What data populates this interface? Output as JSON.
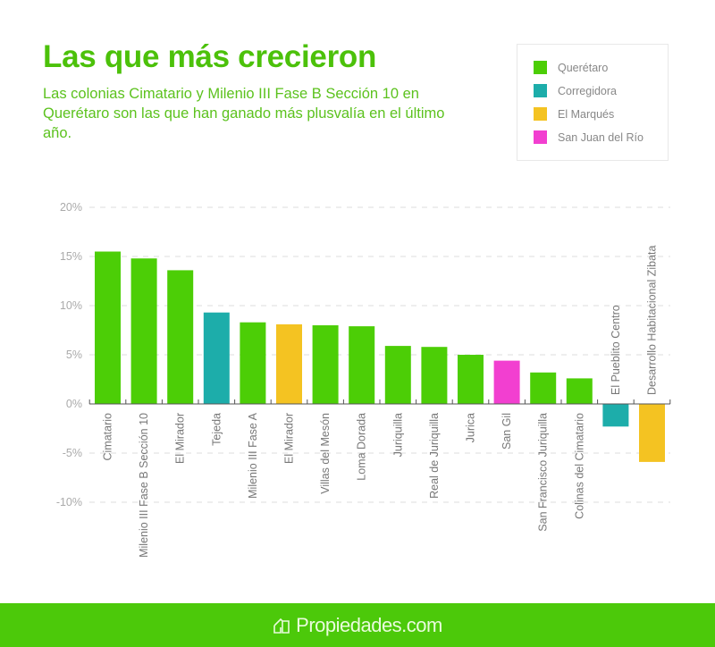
{
  "header": {
    "title": "Las que más crecieron",
    "subtitle": "Las colonias Cimatario y Milenio III Fase B Sección 10 en Querétaro son las que han ganado más plusvalía en el último año."
  },
  "legend": [
    {
      "label": "Querétaro",
      "color": "#4cce06"
    },
    {
      "label": "Corregidora",
      "color": "#1dadaa"
    },
    {
      "label": "El Marqués",
      "color": "#f4c322"
    },
    {
      "label": "San Juan del Río",
      "color": "#f23fd0"
    }
  ],
  "footer": {
    "brand": "Propiedades.com",
    "icon": "house-icon",
    "background": "#4cc90a"
  },
  "chart_data": {
    "type": "bar",
    "title": "Las que más crecieron",
    "xlabel": "",
    "ylabel": "",
    "ylim": [
      -10,
      20
    ],
    "yticks": [
      20,
      15,
      10,
      5,
      0,
      -5,
      -10
    ],
    "ytick_labels": [
      "20%",
      "15%",
      "10%",
      "5%",
      "0%",
      "-5%",
      "-10%"
    ],
    "grid": true,
    "legend_position": "top-right",
    "categories": [
      "Cimatario",
      "Milenio III Fase B Sección 10",
      "El Mirador",
      "Tejeda",
      "Milenio III Fase A",
      "El Mirador",
      "Villas del Mesón",
      "Loma Dorada",
      "Juriquilla",
      "Real de Juriquilla",
      "Jurica",
      "San Gil",
      "San Francisco Juriquilla",
      "Colinas del Cimatario",
      "El Pueblito Centro",
      "Desarrollo Habitacional Zibata"
    ],
    "values": [
      15.5,
      14.8,
      13.6,
      9.3,
      8.3,
      8.1,
      8.0,
      7.9,
      5.9,
      5.8,
      5.0,
      4.4,
      3.2,
      2.6,
      -2.3,
      -5.9
    ],
    "municipality": [
      "Querétaro",
      "Querétaro",
      "Querétaro",
      "Corregidora",
      "Querétaro",
      "El Marqués",
      "Querétaro",
      "Querétaro",
      "Querétaro",
      "Querétaro",
      "Querétaro",
      "San Juan del Río",
      "Querétaro",
      "Querétaro",
      "Corregidora",
      "El Marqués"
    ],
    "series_colors": {
      "Querétaro": "#4cce06",
      "Corregidora": "#1dadaa",
      "El Marqués": "#f4c322",
      "San Juan del Río": "#f23fd0"
    }
  }
}
